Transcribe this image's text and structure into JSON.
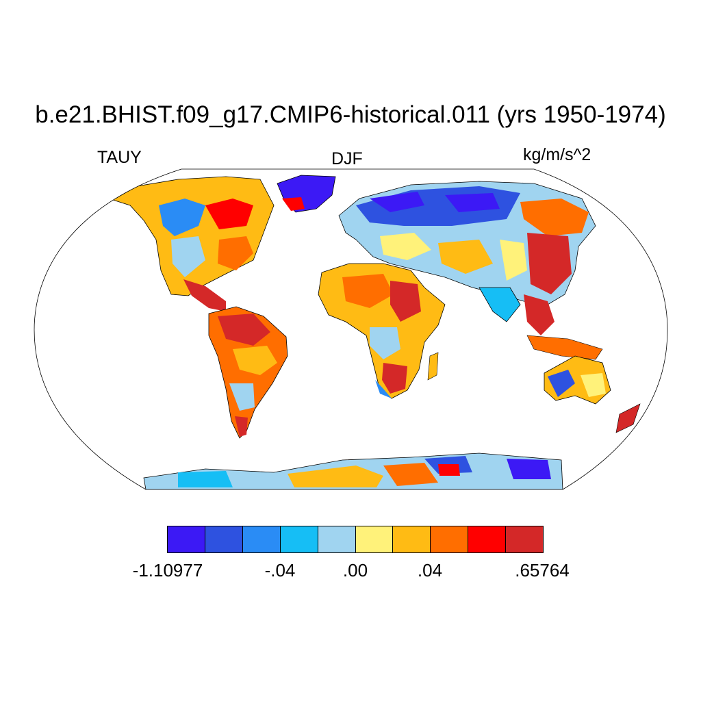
{
  "title": "b.e21.BHIST.f09_g17.CMIP6-historical.011 (yrs 1950-1974)",
  "variable": "TAUY",
  "season": "DJF",
  "units": "kg/m/s^2",
  "colorbar": {
    "colors": [
      "#3c19f5",
      "#2e52e0",
      "#2a8cf5",
      "#16bef5",
      "#a0d4f0",
      "#fff27a",
      "#ffbb14",
      "#ff6e00",
      "#ff0000",
      "#d42828"
    ],
    "tick_labels": [
      "-1.10977",
      "-.04",
      ".00",
      ".04",
      ".65764"
    ]
  },
  "map": {
    "projection": "robinson",
    "ocean_color": "#ffffff",
    "outline_color": "#000000"
  }
}
